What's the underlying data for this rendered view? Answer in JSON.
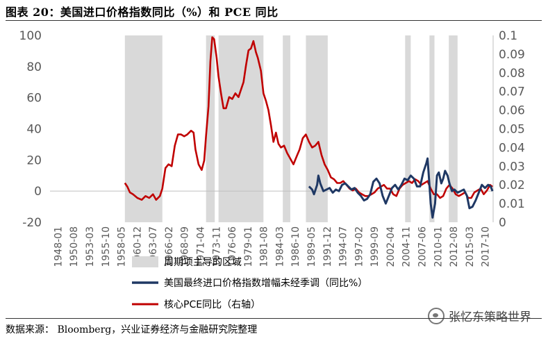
{
  "header": {
    "title": "图表 20：美国进口价格指数同比（%）和 PCE 同比"
  },
  "footer": {
    "source": "数据来源：  Bloomberg，兴业证券经济与金融研究院整理",
    "watermark": "张忆东策略世界"
  },
  "chart_data": {
    "type": "line",
    "x_tick_labels": [
      "1948-01",
      "1950-08",
      "1953-03",
      "1955-10",
      "1958-05",
      "1960-12",
      "1963-07",
      "1966-02",
      "1968-09",
      "1971-04",
      "1973-11",
      "1976-06",
      "1979-01",
      "1981-08",
      "1984-03",
      "1986-10",
      "1989-05",
      "1991-12",
      "1994-07",
      "1997-02",
      "1999-09",
      "2002-04",
      "2004-11",
      "2007-06",
      "2010-01",
      "2012-08",
      "2015-03",
      "2017-10"
    ],
    "y_left": {
      "min": -20,
      "max": 100,
      "ticks": [
        -20,
        0,
        20,
        40,
        60,
        80,
        100
      ],
      "tick_labels": [
        "-20",
        "0",
        "20",
        "40",
        "60",
        "80",
        "100"
      ]
    },
    "y_right": {
      "min": 0,
      "max": 0.1,
      "ticks": [
        0,
        0.01,
        0.02,
        0.03,
        0.04,
        0.05,
        0.06,
        0.07,
        0.08,
        0.09,
        0.1
      ],
      "tick_labels": [
        "0",
        "0.01",
        "0.02",
        "0.03",
        "0.04",
        "0.05",
        "0.06",
        "0.07",
        "0.08",
        "0.09",
        "0.1"
      ]
    },
    "x_range": [
      1948.0,
      2019.0
    ],
    "shaded_periods": [
      [
        1960.0,
        1966.0
      ],
      [
        1973.0,
        1974.4
      ],
      [
        1975.0,
        1982.2
      ],
      [
        1985.3,
        1986.5
      ],
      [
        1989.0,
        1992.5
      ],
      [
        2004.9,
        2005.8
      ],
      [
        2008.8,
        2009.6
      ],
      [
        2011.9,
        2013.3
      ]
    ],
    "legend": {
      "shaded": "周期项主导的区域",
      "series1": "美国最终进口价格指数增幅未经季调（同比%）",
      "series2": "核心PCE同比（右轴）"
    },
    "series": [
      {
        "name": "美国最终进口价格指数增幅未经季调（同比%）",
        "axis": "left",
        "color": "#1f3864",
        "points": [
          [
            1989.5,
            3
          ],
          [
            1990.0,
            1
          ],
          [
            1990.3,
            -2
          ],
          [
            1990.8,
            4
          ],
          [
            1991.0,
            10
          ],
          [
            1991.3,
            5
          ],
          [
            1991.8,
            0
          ],
          [
            1992.3,
            1
          ],
          [
            1992.8,
            2
          ],
          [
            1993.3,
            -1
          ],
          [
            1993.8,
            1
          ],
          [
            1994.3,
            0
          ],
          [
            1994.8,
            4
          ],
          [
            1995.3,
            5
          ],
          [
            1995.8,
            3
          ],
          [
            1996.3,
            1
          ],
          [
            1996.8,
            2
          ],
          [
            1997.3,
            -1
          ],
          [
            1997.8,
            -3
          ],
          [
            1998.3,
            -6
          ],
          [
            1998.8,
            -5
          ],
          [
            1999.3,
            -2
          ],
          [
            1999.8,
            6
          ],
          [
            2000.3,
            8
          ],
          [
            2000.8,
            5
          ],
          [
            2001.3,
            -3
          ],
          [
            2001.8,
            -8
          ],
          [
            2002.3,
            -3
          ],
          [
            2002.8,
            2
          ],
          [
            2003.3,
            4
          ],
          [
            2003.8,
            1
          ],
          [
            2004.3,
            4
          ],
          [
            2004.8,
            8
          ],
          [
            2005.3,
            7
          ],
          [
            2005.8,
            10
          ],
          [
            2006.3,
            8
          ],
          [
            2006.8,
            3
          ],
          [
            2007.3,
            3
          ],
          [
            2007.8,
            12
          ],
          [
            2008.3,
            18
          ],
          [
            2008.5,
            21
          ],
          [
            2008.8,
            4
          ],
          [
            2009.0,
            -8
          ],
          [
            2009.3,
            -17
          ],
          [
            2009.7,
            -8
          ],
          [
            2010.0,
            10
          ],
          [
            2010.3,
            12
          ],
          [
            2010.7,
            5
          ],
          [
            2011.0,
            8
          ],
          [
            2011.3,
            13
          ],
          [
            2011.7,
            10
          ],
          [
            2012.0,
            5
          ],
          [
            2012.4,
            0
          ],
          [
            2012.8,
            1
          ],
          [
            2013.3,
            -1
          ],
          [
            2013.8,
            0
          ],
          [
            2014.3,
            1
          ],
          [
            2014.8,
            -3
          ],
          [
            2015.2,
            -11
          ],
          [
            2015.7,
            -10
          ],
          [
            2016.2,
            -6
          ],
          [
            2016.7,
            -1
          ],
          [
            2017.2,
            4
          ],
          [
            2017.7,
            2
          ],
          [
            2018.2,
            4
          ],
          [
            2018.6,
            3
          ],
          [
            2018.9,
            0
          ]
        ]
      },
      {
        "name": "核心PCE同比（右轴）",
        "axis": "right",
        "color": "#c00000",
        "points": [
          [
            1960.0,
            0.021
          ],
          [
            1960.4,
            0.019
          ],
          [
            1960.8,
            0.016
          ],
          [
            1961.3,
            0.015
          ],
          [
            1962.0,
            0.013
          ],
          [
            1962.7,
            0.012
          ],
          [
            1963.3,
            0.014
          ],
          [
            1963.9,
            0.013
          ],
          [
            1964.5,
            0.015
          ],
          [
            1965.0,
            0.012
          ],
          [
            1965.6,
            0.014
          ],
          [
            1966.0,
            0.018
          ],
          [
            1966.5,
            0.029
          ],
          [
            1967.0,
            0.031
          ],
          [
            1967.5,
            0.03
          ],
          [
            1968.0,
            0.041
          ],
          [
            1968.5,
            0.047
          ],
          [
            1969.0,
            0.047
          ],
          [
            1969.5,
            0.046
          ],
          [
            1970.0,
            0.047
          ],
          [
            1970.6,
            0.049
          ],
          [
            1971.0,
            0.048
          ],
          [
            1971.3,
            0.039
          ],
          [
            1971.8,
            0.031
          ],
          [
            1972.3,
            0.028
          ],
          [
            1972.7,
            0.033
          ],
          [
            1973.0,
            0.046
          ],
          [
            1973.4,
            0.062
          ],
          [
            1973.7,
            0.086
          ],
          [
            1974.0,
            0.099
          ],
          [
            1974.3,
            0.098
          ],
          [
            1974.7,
            0.088
          ],
          [
            1975.0,
            0.078
          ],
          [
            1975.4,
            0.069
          ],
          [
            1975.8,
            0.061
          ],
          [
            1976.2,
            0.061
          ],
          [
            1976.7,
            0.067
          ],
          [
            1977.2,
            0.066
          ],
          [
            1977.7,
            0.069
          ],
          [
            1978.2,
            0.067
          ],
          [
            1978.7,
            0.072
          ],
          [
            1979.0,
            0.075
          ],
          [
            1979.4,
            0.084
          ],
          [
            1979.8,
            0.092
          ],
          [
            1980.2,
            0.093
          ],
          [
            1980.6,
            0.097
          ],
          [
            1981.0,
            0.091
          ],
          [
            1981.3,
            0.088
          ],
          [
            1981.8,
            0.081
          ],
          [
            1982.2,
            0.069
          ],
          [
            1982.6,
            0.065
          ],
          [
            1983.0,
            0.06
          ],
          [
            1983.4,
            0.052
          ],
          [
            1983.8,
            0.043
          ],
          [
            1984.2,
            0.048
          ],
          [
            1984.6,
            0.042
          ],
          [
            1985.0,
            0.04
          ],
          [
            1985.5,
            0.041
          ],
          [
            1986.0,
            0.037
          ],
          [
            1986.5,
            0.034
          ],
          [
            1987.0,
            0.031
          ],
          [
            1987.5,
            0.035
          ],
          [
            1988.0,
            0.039
          ],
          [
            1988.5,
            0.045
          ],
          [
            1989.0,
            0.047
          ],
          [
            1989.5,
            0.043
          ],
          [
            1990.0,
            0.04
          ],
          [
            1990.5,
            0.041
          ],
          [
            1991.0,
            0.043
          ],
          [
            1991.5,
            0.036
          ],
          [
            1992.0,
            0.031
          ],
          [
            1992.5,
            0.028
          ],
          [
            1993.0,
            0.024
          ],
          [
            1993.5,
            0.023
          ],
          [
            1994.0,
            0.021
          ],
          [
            1994.5,
            0.021
          ],
          [
            1995.0,
            0.022
          ],
          [
            1995.5,
            0.02
          ],
          [
            1996.0,
            0.018
          ],
          [
            1996.5,
            0.017
          ],
          [
            1997.0,
            0.018
          ],
          [
            1997.5,
            0.016
          ],
          [
            1998.0,
            0.015
          ],
          [
            1998.5,
            0.014
          ],
          [
            1999.0,
            0.014
          ],
          [
            1999.5,
            0.015
          ],
          [
            2000.0,
            0.016
          ],
          [
            2000.5,
            0.018
          ],
          [
            2001.0,
            0.019
          ],
          [
            2001.5,
            0.02
          ],
          [
            2002.0,
            0.018
          ],
          [
            2002.5,
            0.018
          ],
          [
            2003.0,
            0.015
          ],
          [
            2003.5,
            0.014
          ],
          [
            2004.0,
            0.018
          ],
          [
            2004.5,
            0.02
          ],
          [
            2005.0,
            0.021
          ],
          [
            2005.5,
            0.022
          ],
          [
            2006.0,
            0.021
          ],
          [
            2006.5,
            0.023
          ],
          [
            2007.0,
            0.022
          ],
          [
            2007.5,
            0.02
          ],
          [
            2008.0,
            0.021
          ],
          [
            2008.5,
            0.022
          ],
          [
            2009.0,
            0.018
          ],
          [
            2009.5,
            0.015
          ],
          [
            2010.0,
            0.015
          ],
          [
            2010.5,
            0.013
          ],
          [
            2011.0,
            0.014
          ],
          [
            2011.5,
            0.018
          ],
          [
            2012.0,
            0.02
          ],
          [
            2012.5,
            0.018
          ],
          [
            2013.0,
            0.015
          ],
          [
            2013.5,
            0.014
          ],
          [
            2014.0,
            0.015
          ],
          [
            2014.5,
            0.016
          ],
          [
            2015.0,
            0.013
          ],
          [
            2015.5,
            0.013
          ],
          [
            2016.0,
            0.016
          ],
          [
            2016.5,
            0.017
          ],
          [
            2017.0,
            0.018
          ],
          [
            2017.5,
            0.015
          ],
          [
            2018.0,
            0.017
          ],
          [
            2018.5,
            0.02
          ],
          [
            2018.9,
            0.019
          ]
        ]
      }
    ]
  }
}
